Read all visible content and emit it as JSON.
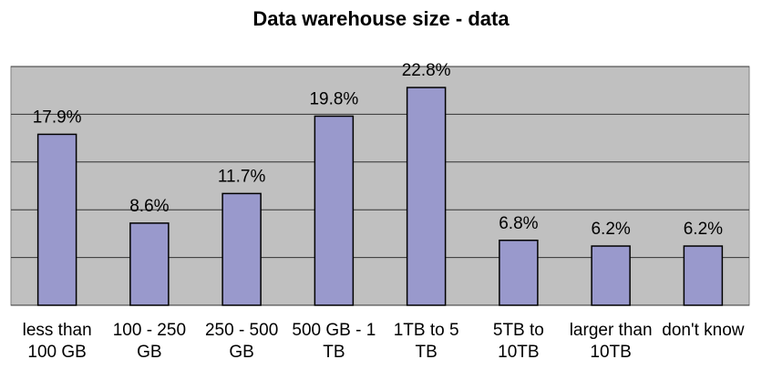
{
  "chart_data": {
    "type": "bar",
    "title": "Data warehouse size - data",
    "categories": [
      "less than 100 GB",
      "100 - 250 GB",
      "250 - 500 GB",
      "500 GB - 1 TB",
      "1TB to 5 TB",
      "5TB to 10TB",
      "larger than 10TB",
      "don't know"
    ],
    "values": [
      17.9,
      8.6,
      11.7,
      19.8,
      22.8,
      6.8,
      6.2,
      6.2
    ],
    "value_labels": [
      "17.9%",
      "8.6%",
      "11.7%",
      "19.8%",
      "22.8%",
      "6.8%",
      "6.2%",
      "6.2%"
    ],
    "color": "#9999cc",
    "ylim": [
      0,
      25
    ],
    "yticks": [
      0,
      5,
      10,
      15,
      20,
      25
    ],
    "grid": true
  }
}
